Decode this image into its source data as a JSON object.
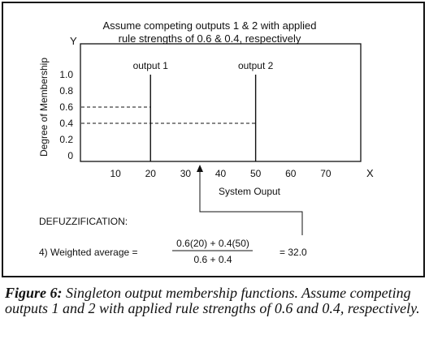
{
  "annotation": {
    "line1": "Assume competing outputs 1 & 2 with applied",
    "line2": "rule strengths of 0.6 & 0.4, respectively"
  },
  "axes": {
    "y_letter": "Y",
    "x_letter": "X",
    "y_title": "Degree of Membership",
    "x_title": "System Ouput"
  },
  "chart_data": {
    "type": "singleton-membership",
    "x_ticks": [
      "10",
      "20",
      "30",
      "40",
      "50",
      "60",
      "70"
    ],
    "y_ticks": [
      "1.0",
      "0.8",
      "0.6",
      "0.4",
      "0.2",
      "0"
    ],
    "xlim": [
      0,
      80
    ],
    "ylim": [
      0,
      1.2
    ],
    "series": [
      {
        "name": "output 1",
        "x": 20,
        "y": 1.0,
        "strength": 0.6
      },
      {
        "name": "output 2",
        "x": 50,
        "y": 1.0,
        "strength": 0.4
      }
    ],
    "result": 32.0
  },
  "defuzz": {
    "heading": "DEFUZZIFICATION:",
    "step": "4)  Weighted average =",
    "numerator": "0.6(20) + 0.4(50)",
    "denominator": "0.6 + 0.4",
    "result": "= 32.0"
  },
  "caption": {
    "label": "Figure 6:",
    "text": " Singleton output membership functions. Assume competing outputs 1 and 2 with applied rule strengths of 0.6 and 0.4, respectively."
  }
}
